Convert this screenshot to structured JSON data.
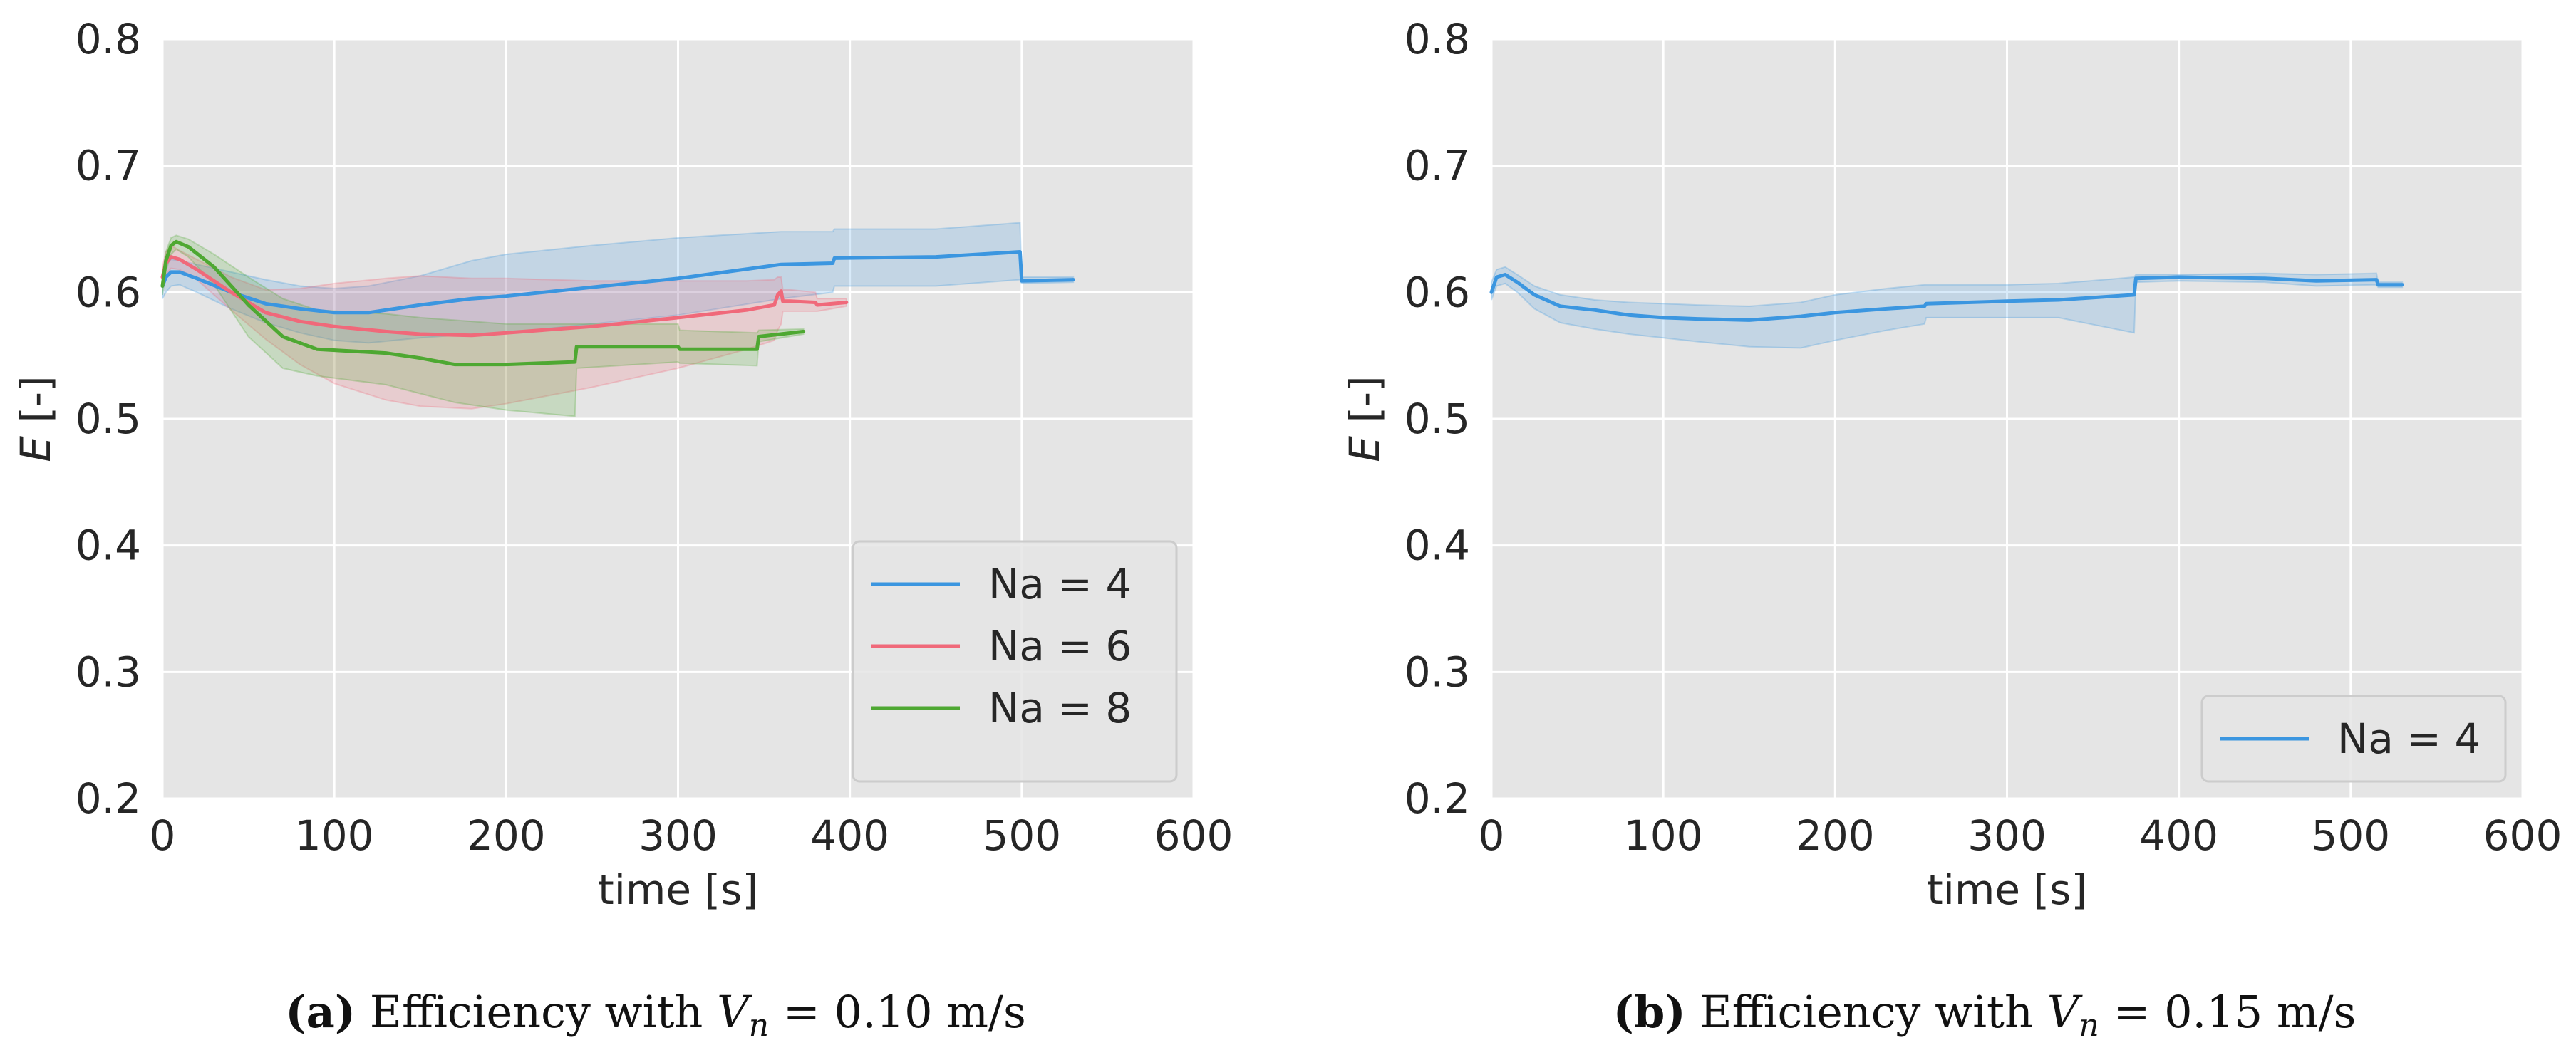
{
  "chart_data": [
    {
      "type": "line",
      "panel": "a",
      "caption": {
        "label": "(a)",
        "text": "Efficiency with",
        "var": "V",
        "sub": "n",
        "eq": " = 0.10 m/s"
      },
      "xlabel": "time [s]",
      "ylabel_var": "E",
      "ylabel_unit": " [-]",
      "xlim": [
        0,
        600
      ],
      "ylim": [
        0.2,
        0.8
      ],
      "xticks": [
        0,
        100,
        200,
        300,
        400,
        500,
        600
      ],
      "yticks": [
        0.2,
        0.3,
        0.4,
        0.5,
        0.6,
        0.7,
        0.8
      ],
      "grid": true,
      "legend_position": "bottom-right",
      "series": [
        {
          "name": "Na = 4",
          "color": "#3b96e0",
          "x": [
            0,
            2,
            5,
            10,
            20,
            40,
            60,
            80,
            100,
            120,
            150,
            180,
            200,
            250,
            300,
            360,
            390,
            391,
            450,
            499,
            500,
            530
          ],
          "y": [
            0.605,
            0.612,
            0.616,
            0.616,
            0.611,
            0.6,
            0.591,
            0.587,
            0.584,
            0.584,
            0.59,
            0.595,
            0.597,
            0.604,
            0.611,
            0.622,
            0.623,
            0.627,
            0.628,
            0.632,
            0.609,
            0.61
          ],
          "upper": [
            0.615,
            0.622,
            0.626,
            0.625,
            0.622,
            0.616,
            0.61,
            0.605,
            0.603,
            0.605,
            0.613,
            0.625,
            0.63,
            0.637,
            0.643,
            0.648,
            0.648,
            0.65,
            0.65,
            0.655,
            0.612,
            0.612
          ],
          "lower": [
            0.595,
            0.6,
            0.605,
            0.606,
            0.6,
            0.587,
            0.576,
            0.568,
            0.562,
            0.56,
            0.564,
            0.567,
            0.568,
            0.575,
            0.582,
            0.595,
            0.6,
            0.605,
            0.605,
            0.61,
            0.607,
            0.608
          ]
        },
        {
          "name": "Na = 6",
          "color": "#f0697a",
          "x": [
            0,
            2,
            5,
            10,
            20,
            40,
            60,
            80,
            100,
            130,
            150,
            180,
            200,
            250,
            300,
            340,
            356,
            358,
            360,
            361,
            365,
            380,
            381,
            398
          ],
          "y": [
            0.612,
            0.623,
            0.628,
            0.626,
            0.618,
            0.6,
            0.584,
            0.577,
            0.573,
            0.569,
            0.567,
            0.566,
            0.568,
            0.573,
            0.58,
            0.586,
            0.59,
            0.598,
            0.601,
            0.593,
            0.593,
            0.592,
            0.59,
            0.592
          ],
          "upper": [
            0.62,
            0.632,
            0.637,
            0.633,
            0.626,
            0.612,
            0.602,
            0.603,
            0.607,
            0.611,
            0.613,
            0.611,
            0.611,
            0.609,
            0.609,
            0.609,
            0.61,
            0.612,
            0.612,
            0.602,
            0.602,
            0.6,
            0.595,
            0.595
          ],
          "lower": [
            0.604,
            0.614,
            0.619,
            0.618,
            0.61,
            0.586,
            0.563,
            0.543,
            0.528,
            0.515,
            0.51,
            0.508,
            0.512,
            0.525,
            0.54,
            0.555,
            0.562,
            0.57,
            0.575,
            0.585,
            0.585,
            0.585,
            0.585,
            0.589
          ]
        },
        {
          "name": "Na = 8",
          "color": "#4ea832",
          "x": [
            0,
            2,
            5,
            8,
            15,
            30,
            50,
            70,
            90,
            130,
            150,
            170,
            200,
            240,
            241,
            300,
            301,
            346,
            347,
            373
          ],
          "y": [
            0.605,
            0.625,
            0.637,
            0.64,
            0.636,
            0.62,
            0.59,
            0.565,
            0.555,
            0.552,
            0.548,
            0.543,
            0.543,
            0.545,
            0.557,
            0.557,
            0.555,
            0.555,
            0.565,
            0.569
          ],
          "upper": [
            0.612,
            0.632,
            0.643,
            0.645,
            0.642,
            0.63,
            0.612,
            0.595,
            0.586,
            0.583,
            0.58,
            0.578,
            0.575,
            0.575,
            0.575,
            0.575,
            0.57,
            0.568,
            0.57,
            0.571
          ],
          "lower": [
            0.598,
            0.617,
            0.63,
            0.634,
            0.628,
            0.606,
            0.565,
            0.54,
            0.534,
            0.527,
            0.52,
            0.513,
            0.507,
            0.502,
            0.54,
            0.545,
            0.544,
            0.542,
            0.561,
            0.567
          ]
        }
      ]
    },
    {
      "type": "line",
      "panel": "b",
      "caption": {
        "label": "(b)",
        "text": "Efficiency with",
        "var": "V",
        "sub": "n",
        "eq": " = 0.15 m/s"
      },
      "xlabel": "time [s]",
      "ylabel_var": "E",
      "ylabel_unit": " [-]",
      "xlim": [
        0,
        600
      ],
      "ylim": [
        0.2,
        0.8
      ],
      "xticks": [
        0,
        100,
        200,
        300,
        400,
        500,
        600
      ],
      "yticks": [
        0.2,
        0.3,
        0.4,
        0.5,
        0.6,
        0.7,
        0.8
      ],
      "grid": true,
      "legend_position": "bottom-right",
      "series": [
        {
          "name": "Na = 4",
          "color": "#3b96e0",
          "x": [
            0,
            3,
            8,
            15,
            25,
            40,
            60,
            80,
            100,
            120,
            150,
            180,
            200,
            230,
            252,
            253,
            300,
            330,
            374,
            375,
            400,
            450,
            480,
            515,
            516,
            530
          ],
          "y": [
            0.6,
            0.612,
            0.614,
            0.608,
            0.598,
            0.589,
            0.586,
            0.582,
            0.58,
            0.579,
            0.578,
            0.581,
            0.584,
            0.587,
            0.589,
            0.591,
            0.593,
            0.594,
            0.598,
            0.611,
            0.612,
            0.611,
            0.609,
            0.61,
            0.606,
            0.606
          ],
          "upper": [
            0.608,
            0.618,
            0.62,
            0.614,
            0.605,
            0.598,
            0.594,
            0.592,
            0.591,
            0.59,
            0.589,
            0.592,
            0.598,
            0.603,
            0.606,
            0.606,
            0.606,
            0.607,
            0.612,
            0.614,
            0.614,
            0.615,
            0.614,
            0.615,
            0.608,
            0.608
          ],
          "lower": [
            0.594,
            0.605,
            0.607,
            0.6,
            0.587,
            0.576,
            0.571,
            0.567,
            0.564,
            0.561,
            0.557,
            0.556,
            0.562,
            0.57,
            0.575,
            0.58,
            0.58,
            0.58,
            0.568,
            0.608,
            0.609,
            0.608,
            0.605,
            0.606,
            0.604,
            0.604
          ]
        }
      ]
    }
  ]
}
